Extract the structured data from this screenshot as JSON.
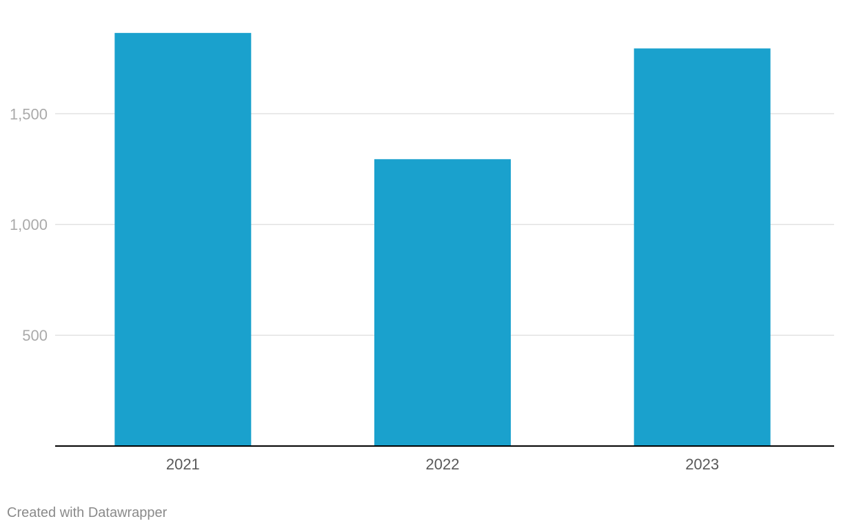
{
  "chart_data": {
    "type": "bar",
    "categories": [
      "2021",
      "2022",
      "2023"
    ],
    "values": [
      1865,
      1295,
      1795
    ],
    "ylim": [
      0,
      2000
    ],
    "yticks": [
      500,
      1000,
      1500
    ],
    "ytick_labels": [
      "500",
      "1,000",
      "1,500"
    ],
    "grid": true,
    "bar_color": "#1aa1cd"
  },
  "footer": {
    "credit": "Created with Datawrapper"
  }
}
